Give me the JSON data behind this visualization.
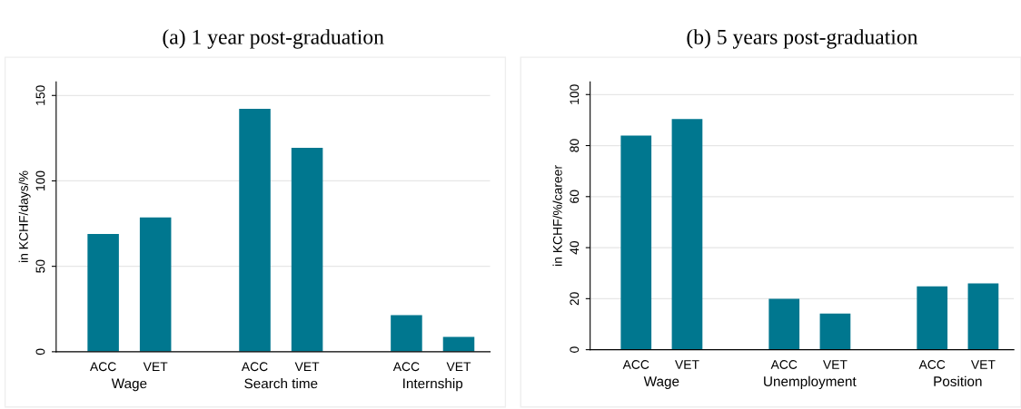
{
  "chart_data": [
    {
      "type": "bar",
      "title": "(a) 1 year post-graduation",
      "ylabel": "in KCHF/days/%",
      "categories": [
        "ACC",
        "VET",
        "ACC",
        "VET",
        "ACC",
        "VET"
      ],
      "annotations": [
        "Wage",
        "Search time",
        "Internship"
      ],
      "values": [
        68.9,
        78.6,
        142.2,
        119.4,
        21.4,
        8.7
      ],
      "color": "#00778f",
      "ylim": [
        0,
        158
      ],
      "yticks": [
        0,
        50,
        100,
        150
      ],
      "grid": "y",
      "legend": false
    },
    {
      "type": "bar",
      "title": "(b) 5 years post-graduation",
      "ylabel": "in KCHF/%/career",
      "categories": [
        "ACC",
        "VET",
        "ACC",
        "VET",
        "ACC",
        "VET"
      ],
      "annotations": [
        "Wage",
        "Unemployment",
        "Position"
      ],
      "values": [
        83.9,
        90.4,
        19.9,
        14.2,
        24.8,
        26.0
      ],
      "color": "#00778f",
      "ylim": [
        0,
        105
      ],
      "yticks": [
        0,
        20,
        40,
        60,
        80,
        100
      ],
      "grid": "y",
      "legend": false
    }
  ]
}
